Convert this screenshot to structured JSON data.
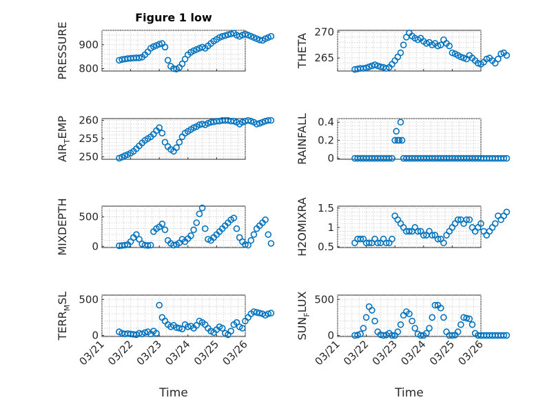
{
  "figure": {
    "title": "Figure 1 low",
    "xlabel": "Time"
  },
  "chart_data": [
    {
      "type": "scatter",
      "ylabel": "PRESSURE",
      "title": "Figure 1 low",
      "xticks": [
        "03/21",
        "03/22",
        "03/23",
        "03/24",
        "03/25",
        "03/26"
      ],
      "yticks": [
        800,
        900
      ],
      "ylim": [
        790,
        960
      ],
      "grid": true,
      "x": [
        0.6,
        0.7,
        0.8,
        0.9,
        1.0,
        1.1,
        1.2,
        1.3,
        1.4,
        1.5,
        1.6,
        1.7,
        1.8,
        1.9,
        2.0,
        2.1,
        2.2,
        2.3,
        2.4,
        2.5,
        2.6,
        2.7,
        2.8,
        2.9,
        3.0,
        3.1,
        3.2,
        3.3,
        3.4,
        3.5,
        3.6,
        3.7,
        3.8,
        3.9,
        4.0,
        4.1,
        4.2,
        4.3,
        4.4,
        4.5,
        4.6,
        4.7,
        4.8,
        4.9,
        5.0,
        5.1,
        5.2,
        5.3,
        5.4,
        5.5,
        5.6,
        5.7,
        5.8,
        5.9
      ],
      "y": [
        835,
        838,
        840,
        842,
        843,
        844,
        845,
        845,
        848,
        858,
        870,
        885,
        892,
        897,
        902,
        905,
        890,
        835,
        810,
        800,
        798,
        805,
        820,
        840,
        858,
        868,
        875,
        880,
        885,
        890,
        885,
        895,
        905,
        915,
        922,
        930,
        935,
        938,
        942,
        945,
        948,
        940,
        935,
        940,
        945,
        940,
        935,
        930,
        925,
        920,
        918,
        925,
        930,
        935
      ]
    },
    {
      "type": "scatter",
      "ylabel": "THETA",
      "xticks": [
        "03/21",
        "03/22",
        "03/23",
        "03/24",
        "03/25",
        "03/26"
      ],
      "yticks": [
        265,
        270
      ],
      "ylim": [
        262.5,
        270.3
      ],
      "grid": true,
      "x": [
        0.6,
        0.7,
        0.8,
        0.9,
        1.0,
        1.1,
        1.2,
        1.3,
        1.4,
        1.5,
        1.6,
        1.7,
        1.8,
        1.9,
        2.0,
        2.1,
        2.2,
        2.3,
        2.4,
        2.5,
        2.6,
        2.7,
        2.8,
        2.9,
        3.0,
        3.1,
        3.2,
        3.3,
        3.4,
        3.5,
        3.6,
        3.7,
        3.8,
        3.9,
        4.0,
        4.1,
        4.2,
        4.3,
        4.4,
        4.5,
        4.6,
        4.7,
        4.8,
        4.9,
        5.0,
        5.1,
        5.2,
        5.3,
        5.4,
        5.5,
        5.6,
        5.7,
        5.8,
        5.9
      ],
      "y": [
        262.8,
        262.9,
        263.0,
        263.0,
        263.1,
        263.3,
        263.5,
        263.7,
        263.5,
        263.3,
        263.2,
        263.0,
        263.2,
        263.8,
        264.5,
        265.2,
        266.0,
        267.5,
        269.0,
        269.8,
        269.2,
        268.8,
        268.5,
        268.8,
        268.2,
        267.8,
        268.0,
        267.5,
        267.8,
        267.3,
        267.5,
        268.5,
        267.8,
        267.3,
        266.0,
        265.8,
        265.5,
        265.2,
        265.0,
        264.8,
        265.5,
        265.0,
        264.5,
        264.0,
        263.8,
        264.2,
        264.8,
        265.0,
        264.5,
        264.0,
        264.8,
        265.8,
        266.0,
        265.5
      ]
    },
    {
      "type": "scatter",
      "ylabel": "AIR_TEMP",
      "xticks": [
        "03/21",
        "03/22",
        "03/23",
        "03/24",
        "03/25",
        "03/26"
      ],
      "yticks": [
        250,
        255,
        260
      ],
      "ylim": [
        249.3,
        260.5
      ],
      "grid": true,
      "x": [
        0.6,
        0.7,
        0.8,
        0.9,
        1.0,
        1.1,
        1.2,
        1.3,
        1.4,
        1.5,
        1.6,
        1.7,
        1.8,
        1.9,
        2.0,
        2.1,
        2.2,
        2.3,
        2.4,
        2.5,
        2.6,
        2.7,
        2.8,
        2.9,
        3.0,
        3.1,
        3.2,
        3.3,
        3.4,
        3.5,
        3.6,
        3.7,
        3.8,
        3.9,
        4.0,
        4.1,
        4.2,
        4.3,
        4.4,
        4.5,
        4.6,
        4.7,
        4.8,
        4.9,
        5.0,
        5.1,
        5.2,
        5.3,
        5.4,
        5.5,
        5.6,
        5.7,
        5.8,
        5.9
      ],
      "y": [
        249.6,
        249.9,
        250.3,
        250.6,
        251.0,
        251.5,
        252.2,
        253.0,
        253.8,
        254.5,
        255.0,
        255.5,
        256.2,
        257.2,
        258.0,
        256.5,
        254.0,
        252.8,
        252.0,
        251.5,
        252.5,
        254.0,
        255.5,
        256.5,
        257.0,
        257.5,
        258.0,
        258.3,
        258.8,
        259.0,
        258.8,
        259.2,
        259.5,
        259.6,
        259.8,
        259.8,
        260.0,
        260.0,
        260.0,
        259.8,
        259.8,
        259.5,
        259.0,
        259.5,
        259.8,
        260.0,
        259.8,
        259.5,
        259.0,
        259.2,
        259.5,
        259.8,
        260.0,
        260.0
      ]
    },
    {
      "type": "scatter",
      "ylabel": "RAINFALL",
      "xticks": [
        "03/21",
        "03/22",
        "03/23",
        "03/24",
        "03/25",
        "03/26"
      ],
      "yticks": [
        0,
        0.2,
        0.4
      ],
      "ylim": [
        -0.01,
        0.44
      ],
      "grid": true,
      "x": [
        0.6,
        0.7,
        0.8,
        0.9,
        1.0,
        1.1,
        1.2,
        1.3,
        1.4,
        1.5,
        1.6,
        1.7,
        1.8,
        1.9,
        2.0,
        2.05,
        2.1,
        2.15,
        2.2,
        2.25,
        2.3,
        2.4,
        2.5,
        2.6,
        2.7,
        2.8,
        2.9,
        3.0,
        3.1,
        3.2,
        3.3,
        3.4,
        3.5,
        3.6,
        3.7,
        3.8,
        3.9,
        4.0,
        4.1,
        4.2,
        4.3,
        4.4,
        4.5,
        4.6,
        4.7,
        4.8,
        4.9,
        5.0,
        5.1,
        5.2,
        5.3,
        5.4,
        5.5,
        5.6,
        5.7,
        5.8,
        5.9
      ],
      "y": [
        0,
        0,
        0,
        0,
        0,
        0,
        0,
        0,
        0,
        0,
        0,
        0,
        0,
        0,
        0.2,
        0.3,
        0.2,
        0.2,
        0.4,
        0.2,
        0,
        0,
        0,
        0,
        0,
        0,
        0,
        0,
        0,
        0,
        0,
        0,
        0,
        0,
        0,
        0,
        0,
        0,
        0,
        0,
        0,
        0,
        0,
        0,
        0,
        0,
        0,
        0,
        0,
        0,
        0,
        0,
        0,
        0,
        0,
        0,
        0
      ]
    },
    {
      "type": "scatter",
      "ylabel": "MIXDEPTH",
      "xticks": [
        "03/21",
        "03/22",
        "03/23",
        "03/24",
        "03/25",
        "03/26"
      ],
      "yticks": [
        0,
        500
      ],
      "ylim": [
        -20,
        680
      ],
      "grid": true,
      "x": [
        0.6,
        0.7,
        0.8,
        0.9,
        1.0,
        1.1,
        1.2,
        1.3,
        1.4,
        1.5,
        1.6,
        1.7,
        1.8,
        1.9,
        2.0,
        2.1,
        2.2,
        2.3,
        2.4,
        2.5,
        2.6,
        2.7,
        2.8,
        2.9,
        3.0,
        3.1,
        3.2,
        3.3,
        3.4,
        3.5,
        3.6,
        3.7,
        3.8,
        3.9,
        4.0,
        4.1,
        4.2,
        4.3,
        4.4,
        4.5,
        4.6,
        4.7,
        4.8,
        4.9,
        5.0,
        5.1,
        5.2,
        5.3,
        5.4,
        5.5,
        5.6,
        5.7,
        5.8,
        5.9
      ],
      "y": [
        10,
        15,
        20,
        30,
        80,
        150,
        200,
        120,
        40,
        20,
        15,
        20,
        250,
        300,
        330,
        380,
        280,
        100,
        50,
        20,
        30,
        60,
        120,
        80,
        130,
        180,
        280,
        400,
        550,
        650,
        300,
        120,
        100,
        150,
        200,
        250,
        300,
        350,
        400,
        450,
        480,
        300,
        150,
        80,
        30,
        20,
        100,
        200,
        300,
        350,
        400,
        450,
        200,
        50
      ]
    },
    {
      "type": "scatter",
      "ylabel": "H2OMIXRA",
      "xticks": [
        "03/21",
        "03/22",
        "03/23",
        "03/24",
        "03/25",
        "03/26"
      ],
      "yticks": [
        0.5,
        1,
        1.5
      ],
      "ylim": [
        0.48,
        1.55
      ],
      "grid": true,
      "x": [
        0.6,
        0.7,
        0.8,
        0.9,
        1.0,
        1.1,
        1.2,
        1.3,
        1.4,
        1.5,
        1.6,
        1.7,
        1.8,
        1.9,
        2.0,
        2.1,
        2.2,
        2.3,
        2.4,
        2.5,
        2.6,
        2.7,
        2.8,
        2.9,
        3.0,
        3.1,
        3.2,
        3.3,
        3.4,
        3.5,
        3.6,
        3.7,
        3.8,
        3.9,
        4.0,
        4.1,
        4.2,
        4.3,
        4.4,
        4.5,
        4.6,
        4.7,
        4.8,
        4.9,
        5.0,
        5.1,
        5.2,
        5.3,
        5.4,
        5.5,
        5.6,
        5.7,
        5.8,
        5.9
      ],
      "y": [
        0.6,
        0.7,
        0.7,
        0.7,
        0.6,
        0.6,
        0.6,
        0.7,
        0.6,
        0.6,
        0.7,
        0.6,
        0.6,
        0.7,
        1.3,
        1.2,
        1.1,
        1.0,
        0.9,
        0.9,
        0.9,
        1.0,
        0.9,
        0.9,
        0.8,
        0.8,
        0.9,
        0.8,
        0.8,
        0.7,
        0.7,
        0.6,
        0.8,
        0.9,
        1.0,
        1.1,
        1.2,
        1.2,
        1.1,
        1.2,
        1.2,
        1.0,
        0.9,
        1.0,
        1.1,
        0.9,
        0.8,
        0.9,
        1.0,
        1.1,
        1.3,
        1.2,
        1.3,
        1.4
      ]
    },
    {
      "type": "scatter",
      "ylabel": "TERR_MSL",
      "xticks": [
        "03/21",
        "03/22",
        "03/23",
        "03/24",
        "03/25",
        "03/26"
      ],
      "yticks": [
        0,
        500
      ],
      "ylim": [
        -15,
        560
      ],
      "grid": true,
      "x": [
        0.6,
        0.7,
        0.8,
        0.9,
        1.0,
        1.1,
        1.2,
        1.3,
        1.4,
        1.5,
        1.6,
        1.7,
        1.8,
        1.9,
        2.0,
        2.1,
        2.2,
        2.3,
        2.4,
        2.5,
        2.6,
        2.7,
        2.8,
        2.9,
        3.0,
        3.1,
        3.2,
        3.3,
        3.4,
        3.5,
        3.6,
        3.7,
        3.8,
        3.9,
        4.0,
        4.1,
        4.2,
        4.3,
        4.4,
        4.5,
        4.6,
        4.7,
        4.8,
        4.9,
        5.0,
        5.1,
        5.2,
        5.3,
        5.4,
        5.5,
        5.6,
        5.7,
        5.8,
        5.9
      ],
      "y": [
        50,
        30,
        20,
        25,
        20,
        15,
        10,
        30,
        20,
        40,
        50,
        20,
        60,
        30,
        420,
        250,
        200,
        150,
        120,
        140,
        110,
        100,
        90,
        150,
        120,
        130,
        100,
        140,
        200,
        180,
        150,
        100,
        60,
        40,
        80,
        120,
        100,
        30,
        10,
        60,
        150,
        180,
        120,
        100,
        200,
        250,
        300,
        330,
        320,
        310,
        300,
        280,
        300,
        310
      ]
    },
    {
      "type": "scatter",
      "ylabel": "SUN_FLUX",
      "xticks": [
        "03/21",
        "03/22",
        "03/23",
        "03/24",
        "03/25",
        "03/26"
      ],
      "yticks": [
        0,
        500
      ],
      "ylim": [
        -15,
        560
      ],
      "grid": true,
      "x": [
        0.6,
        0.7,
        0.8,
        0.9,
        1.0,
        1.1,
        1.2,
        1.3,
        1.4,
        1.5,
        1.6,
        1.7,
        1.8,
        1.9,
        2.0,
        2.1,
        2.2,
        2.3,
        2.4,
        2.5,
        2.6,
        2.7,
        2.8,
        2.9,
        3.0,
        3.1,
        3.2,
        3.3,
        3.4,
        3.5,
        3.6,
        3.7,
        3.8,
        3.9,
        4.0,
        4.1,
        4.2,
        4.3,
        4.4,
        4.5,
        4.6,
        4.7,
        4.8,
        4.9,
        5.0,
        5.1,
        5.2,
        5.3,
        5.4,
        5.5,
        5.6,
        5.7,
        5.8,
        5.9
      ],
      "y": [
        0,
        5,
        20,
        100,
        250,
        400,
        350,
        200,
        50,
        10,
        0,
        5,
        30,
        0,
        0,
        50,
        150,
        280,
        330,
        300,
        200,
        100,
        20,
        0,
        0,
        30,
        100,
        250,
        420,
        420,
        380,
        250,
        50,
        0,
        0,
        5,
        50,
        150,
        250,
        240,
        230,
        150,
        30,
        0,
        0,
        0,
        0,
        0,
        0,
        0,
        0,
        0,
        0,
        0
      ]
    }
  ]
}
